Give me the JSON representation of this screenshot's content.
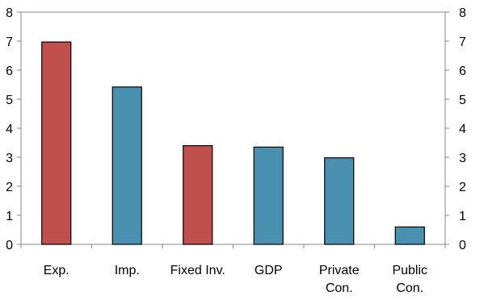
{
  "chart_data": {
    "type": "bar",
    "categories": [
      [
        "Exp."
      ],
      [
        "Imp."
      ],
      [
        "Fixed Inv."
      ],
      [
        "GDP"
      ],
      [
        "Private",
        "Con."
      ],
      [
        "Public",
        "Con."
      ]
    ],
    "values": [
      6.97,
      5.42,
      3.4,
      3.35,
      2.98,
      0.6
    ],
    "bar_colors": [
      "#c0504d",
      "#4a90b0",
      "#c0504d",
      "#4a90b0",
      "#4a90b0",
      "#4a90b0"
    ],
    "bar_outline": "#000000",
    "ylim": [
      0,
      8
    ],
    "yticks": [
      "0",
      "1",
      "2",
      "3",
      "4",
      "5",
      "6",
      "7",
      "8"
    ],
    "secondary_y_axis": true,
    "grid": false,
    "title": "",
    "xlabel": "",
    "ylabel": ""
  }
}
